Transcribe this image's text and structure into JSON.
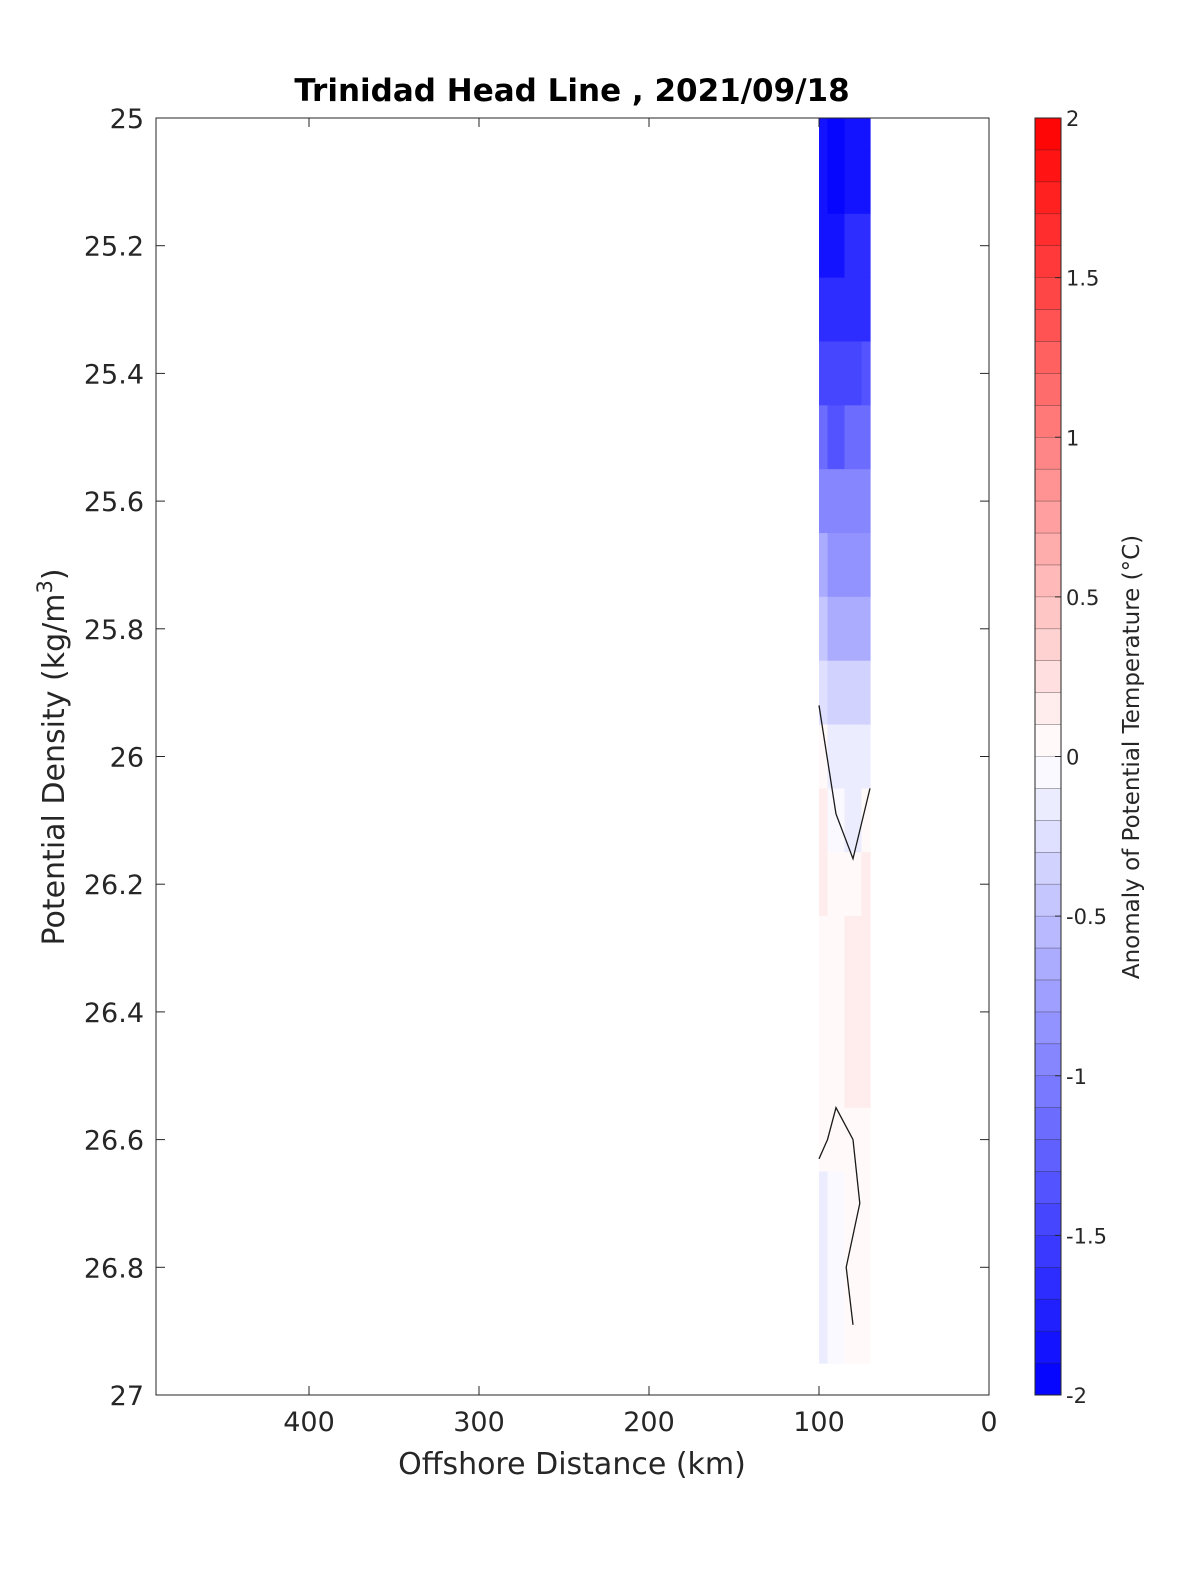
{
  "chart_data": {
    "type": "heatmap",
    "title": "Trinidad Head Line , 2021/09/18",
    "xlabel": "Offshore Distance (km)",
    "ylabel_prefix": "Potential Density (kg/m",
    "ylabel_exp": "3",
    "ylabel_suffix": ")",
    "xlim": [
      490,
      0
    ],
    "ylim": [
      25,
      27
    ],
    "x_reversed": true,
    "y_reversed": true,
    "x_ticks": [
      400,
      300,
      200,
      100,
      0
    ],
    "x_tick_labels": [
      "400",
      "300",
      "200",
      "100",
      "0"
    ],
    "y_ticks": [
      25,
      25.2,
      25.4,
      25.6,
      25.8,
      26,
      26.2,
      26.4,
      26.6,
      26.8,
      27
    ],
    "y_tick_labels": [
      "25",
      "25.2",
      "25.4",
      "25.6",
      "25.8",
      "26",
      "26.2",
      "26.4",
      "26.6",
      "26.8",
      "27"
    ],
    "grid": false,
    "colorbar": {
      "label": "Anomaly of Potential Temperature (°C)",
      "range": [
        -2,
        2
      ],
      "levels": 40,
      "ticks": [
        2,
        1.5,
        1,
        0.5,
        0,
        -0.5,
        -1,
        -1.5,
        -2
      ],
      "tick_labels": [
        "2",
        "1.5",
        "1",
        "0.5",
        "0",
        "-0.5",
        "-1",
        "-1.5",
        "-2"
      ],
      "color_min": "#0000ff",
      "color_mid": "#ffffff",
      "color_max": "#ff0000"
    },
    "data_x": [
      100,
      90,
      80,
      70
    ],
    "data_y": [
      25.0,
      25.1,
      25.2,
      25.3,
      25.4,
      25.5,
      25.6,
      25.7,
      25.8,
      25.9,
      26.0,
      26.1,
      26.2,
      26.3,
      26.4,
      26.5,
      26.6,
      26.7,
      26.8,
      26.9
    ],
    "values": [
      [
        -1.9,
        -2.0,
        -1.9,
        -1.8
      ],
      [
        -1.9,
        -2.0,
        -1.8,
        -1.8
      ],
      [
        -1.8,
        -1.9,
        -1.7,
        -1.7
      ],
      [
        -1.7,
        -1.7,
        -1.6,
        -1.6
      ],
      [
        -1.5,
        -1.5,
        -1.5,
        -1.4
      ],
      [
        -1.2,
        -1.3,
        -1.2,
        -1.2
      ],
      [
        -1.0,
        -1.0,
        -1.0,
        -1.0
      ],
      [
        -0.7,
        -0.8,
        -0.8,
        -0.8
      ],
      [
        -0.5,
        -0.6,
        -0.6,
        -0.6
      ],
      [
        -0.3,
        -0.4,
        -0.4,
        -0.4
      ],
      [
        0.05,
        -0.2,
        -0.2,
        -0.2
      ],
      [
        0.1,
        -0.05,
        -0.1,
        0.0
      ],
      [
        0.1,
        0.0,
        0.0,
        0.1
      ],
      [
        0.0,
        0.0,
        0.1,
        0.1
      ],
      [
        0.0,
        0.0,
        0.1,
        0.1
      ],
      [
        0.0,
        0.0,
        0.1,
        0.1
      ],
      [
        0.0,
        0.0,
        0.0,
        0.0
      ],
      [
        -0.1,
        -0.05,
        0.0,
        0.0
      ],
      [
        -0.1,
        -0.05,
        0.0,
        0.0
      ],
      [
        -0.1,
        -0.05,
        0.0,
        0.0
      ]
    ],
    "zero_contours": [
      [
        [
          100,
          25.92
        ],
        [
          90,
          26.09
        ],
        [
          80,
          26.16
        ],
        [
          70,
          26.05
        ]
      ],
      [
        [
          100,
          26.63
        ],
        [
          95,
          26.6
        ],
        [
          90,
          26.55
        ],
        [
          80,
          26.6
        ]
      ],
      [
        [
          80,
          26.6
        ],
        [
          76,
          26.7
        ],
        [
          84,
          26.8
        ],
        [
          80,
          26.89
        ]
      ]
    ]
  }
}
